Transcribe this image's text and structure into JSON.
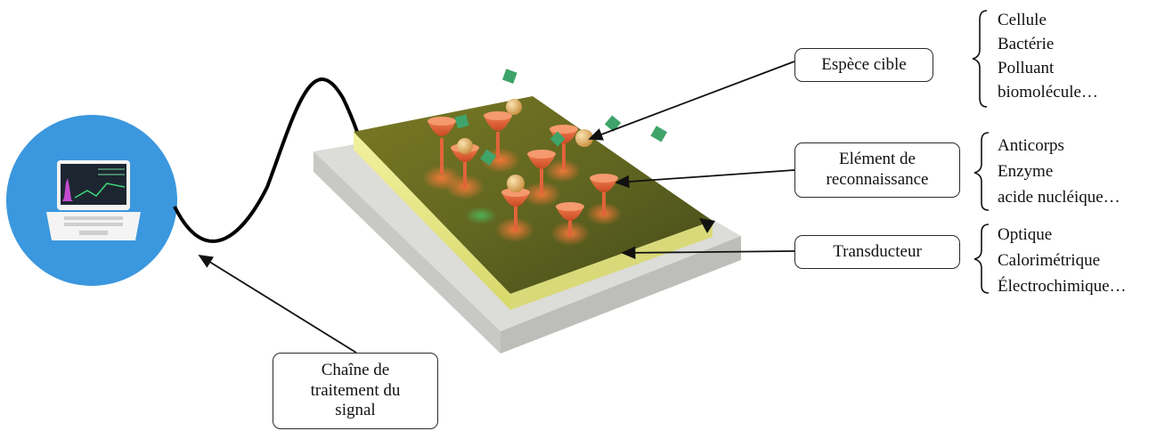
{
  "labels": {
    "espece_cible": "Espèce cible",
    "element_reconnaissance": [
      "Elément de",
      "reconnaissance"
    ],
    "transducteur": "Transducteur",
    "chaine_traitement": [
      "Chaîne de",
      "traitement du",
      "signal"
    ]
  },
  "lists": {
    "especes": [
      "Cellule",
      "Bactérie",
      "Polluant",
      "biomolécule…"
    ],
    "elements": [
      "Anticorps",
      "Enzyme",
      "acide nucléique…"
    ],
    "transducteurs": [
      "Optique",
      "Calorimétrique",
      "Électrochimique…"
    ]
  },
  "colors": {
    "laptop_circle": "#3b97de",
    "substrate": "#d6d6d2",
    "gold_layer": "#8a8a2a",
    "receptor": "#e2643a",
    "target_sphere": "#e8b66a",
    "target_cube": "#3fa46a"
  }
}
